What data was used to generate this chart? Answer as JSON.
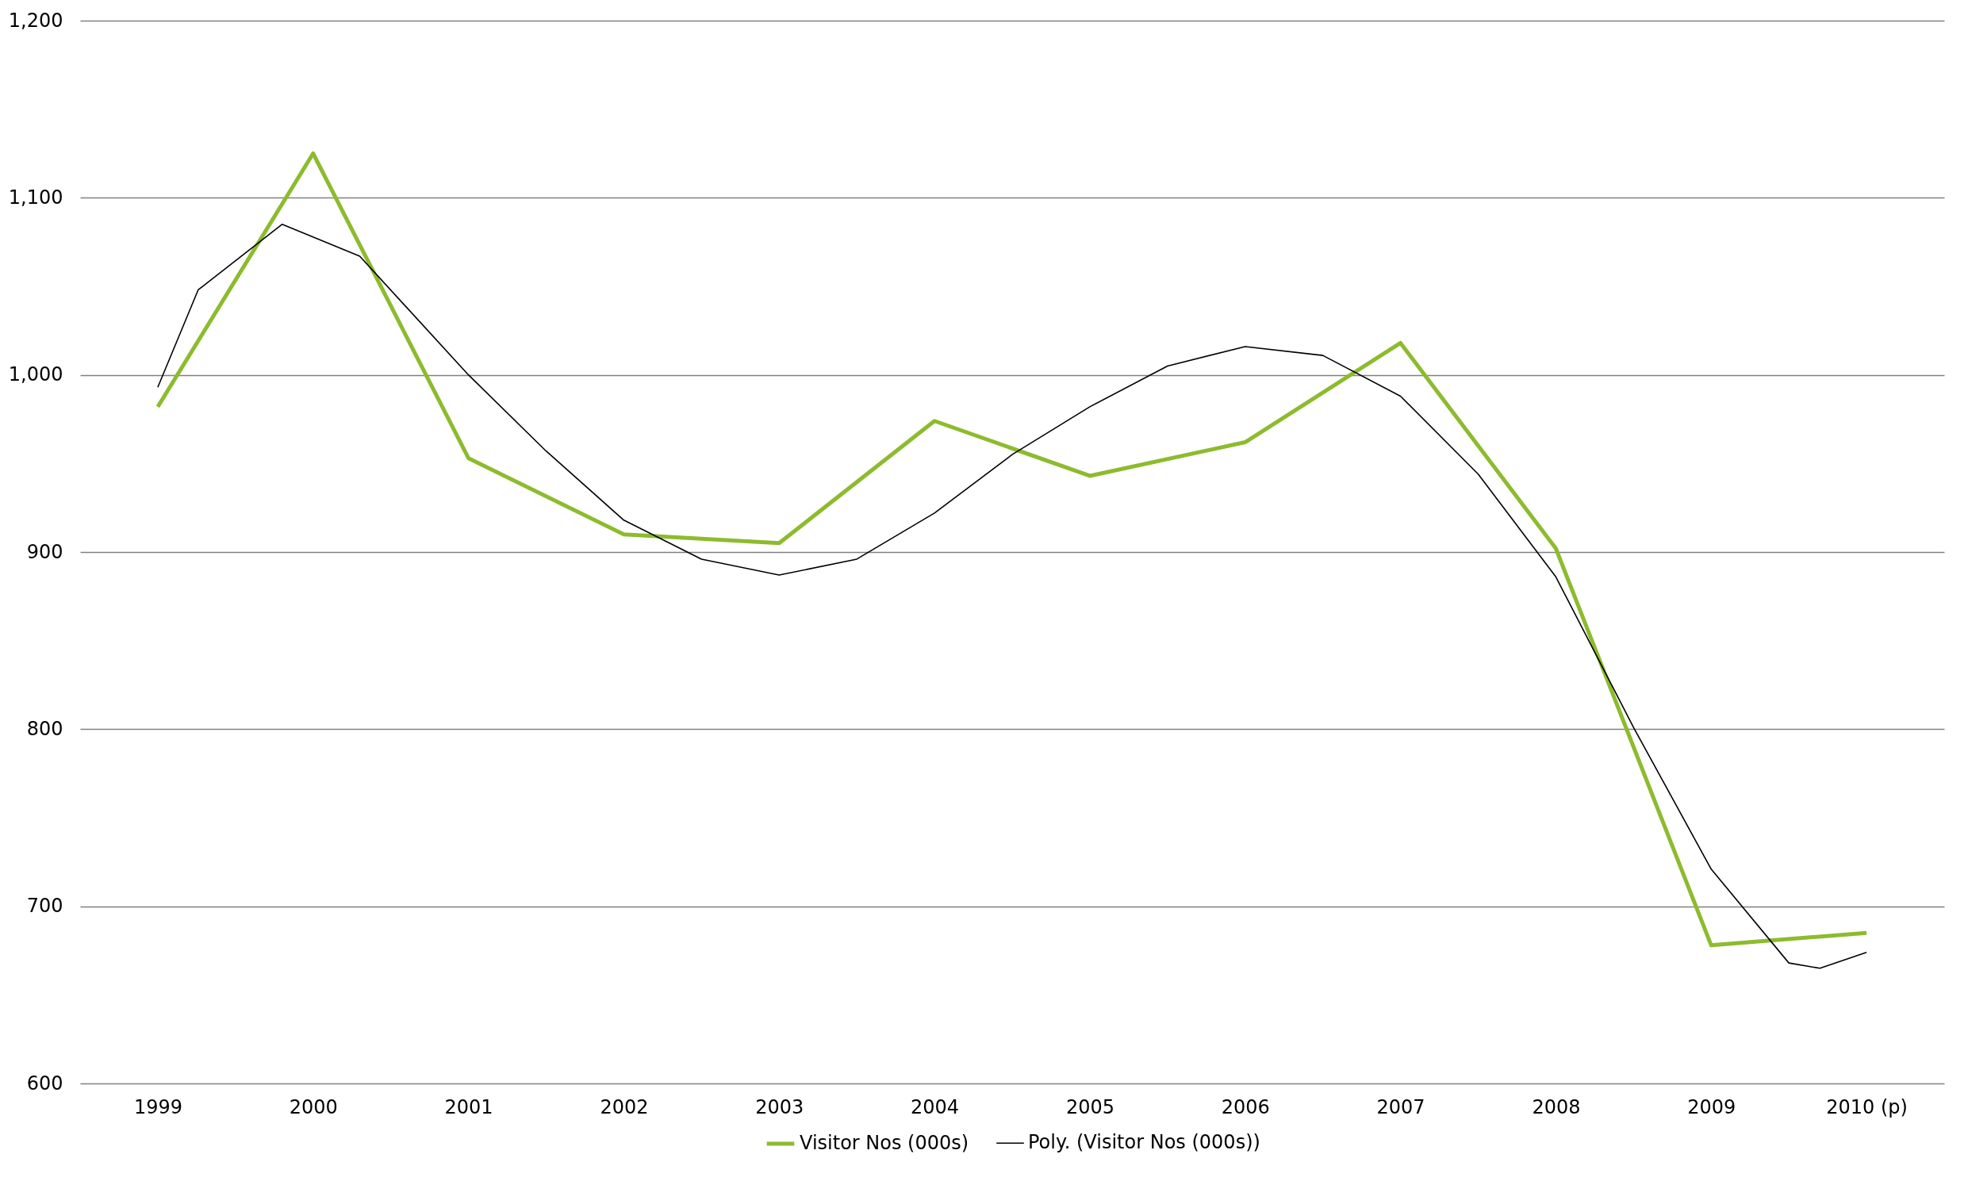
{
  "chart_data": {
    "type": "line",
    "x": [
      1999,
      2000,
      2001,
      2002,
      2003,
      2004,
      2005,
      2006,
      2007,
      2008,
      2009,
      2010
    ],
    "series": [
      {
        "name": "Visitor Nos (000s)",
        "color": "#8dbb2e",
        "values": [
          982,
          1125,
          953,
          910,
          905,
          974,
          943,
          962,
          1018,
          902,
          678,
          685
        ]
      },
      {
        "name": "Poly. (Visitor Nos (000s))",
        "color": "#000000",
        "x": [
          1999,
          1999.26,
          1999.8,
          2000.3,
          2001,
          2001.5,
          2002,
          2002.5,
          2003,
          2003.5,
          2004,
          2004.5,
          2005,
          2005.5,
          2006,
          2006.5,
          2007,
          2007.5,
          2008,
          2008.5,
          2009,
          2009.5,
          2009.7,
          2010
        ],
        "values": [
          993,
          1048,
          1085,
          1067,
          1000,
          957,
          918,
          896,
          887,
          896,
          922,
          955,
          982,
          1005,
          1016,
          1011,
          988,
          944,
          886,
          801,
          721,
          668,
          665,
          674
        ]
      }
    ],
    "xlim": [
      1998.5,
      2010.5
    ],
    "xticks": [
      1999,
      2000,
      2001,
      2002,
      2003,
      2004,
      2005,
      2006,
      2007,
      2008,
      2009,
      {
        "value": 2010,
        "label": "2010 (p)"
      }
    ],
    "ylim": [
      600,
      1200
    ],
    "yticks": [
      600,
      700,
      800,
      900,
      {
        "value": 1000,
        "label": "1,000"
      },
      {
        "value": 1100,
        "label": "1,100"
      },
      {
        "value": 1200,
        "label": "1,200"
      }
    ],
    "grid": "y",
    "legend": "bottom",
    "marker": "none",
    "line_style": "solid"
  }
}
